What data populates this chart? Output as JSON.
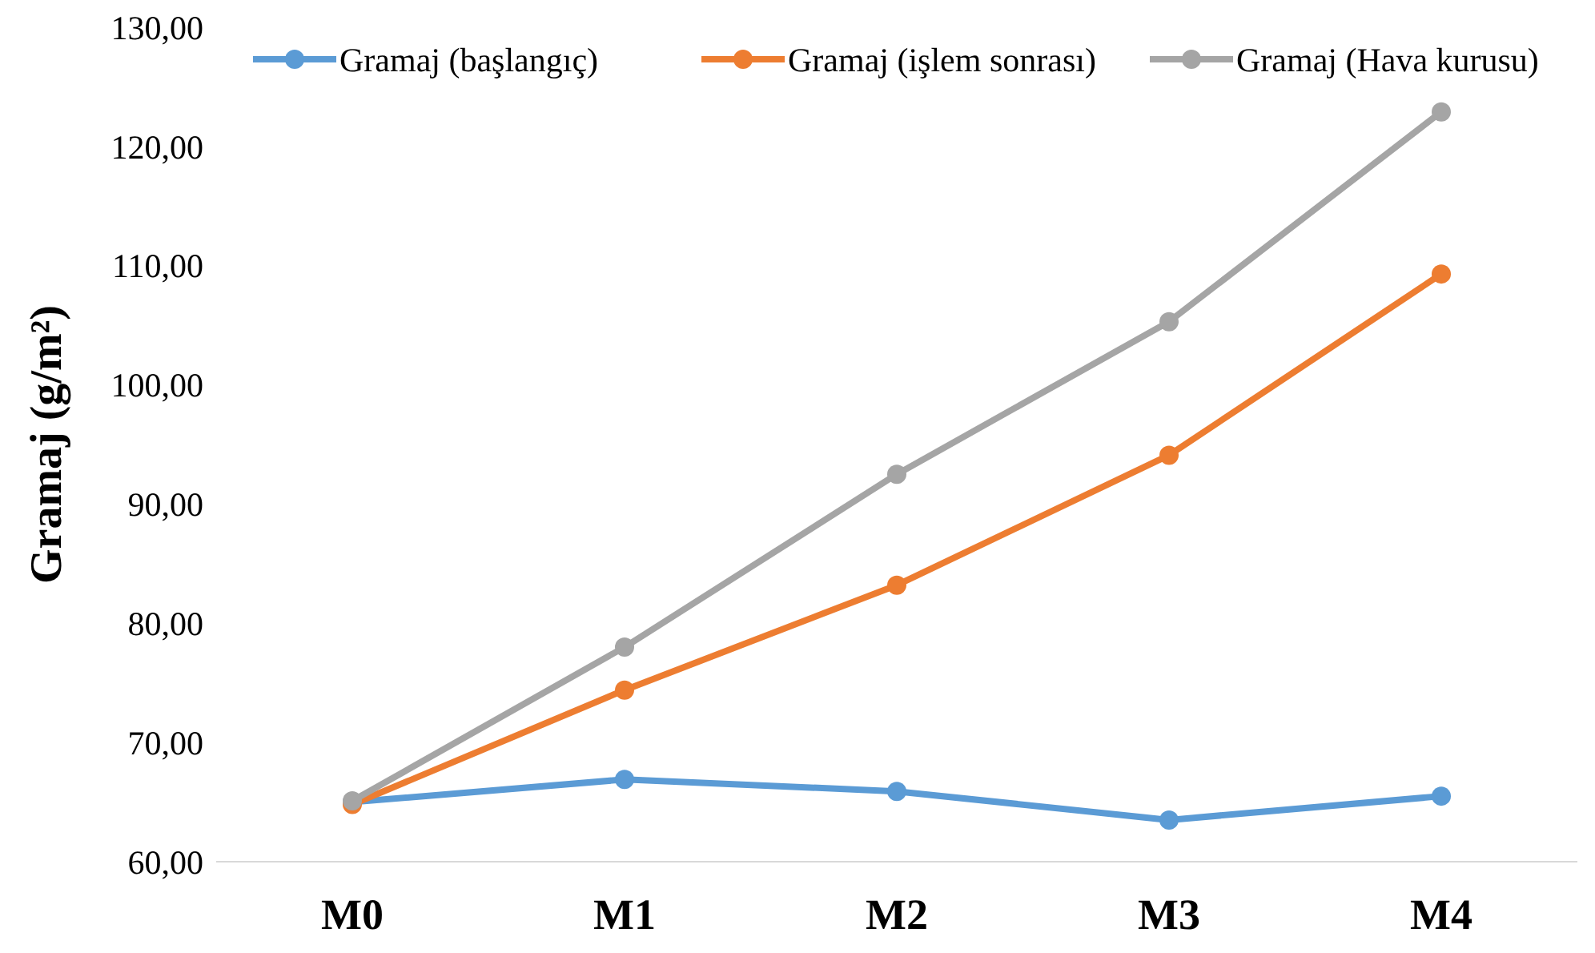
{
  "chart_data": {
    "type": "line",
    "ylabel": "Gramaj (g/m²)",
    "categories": [
      "M0",
      "M1",
      "M2",
      "M3",
      "M4"
    ],
    "series": [
      {
        "name": "Gramaj (başlangıç)",
        "color": "#5b9bd5",
        "values": [
          65.0,
          66.9,
          65.9,
          63.5,
          65.5
        ]
      },
      {
        "name": "Gramaj (işlem sonrası)",
        "color": "#ed7d31",
        "values": [
          64.8,
          74.4,
          83.2,
          94.1,
          109.3
        ]
      },
      {
        "name": "Gramaj (Hava kurusu)",
        "color": "#a5a5a5",
        "values": [
          65.1,
          78.0,
          92.5,
          105.3,
          122.9
        ]
      }
    ],
    "ylim": [
      60,
      130
    ],
    "yticks": [
      {
        "value": 60,
        "label": "60,00"
      },
      {
        "value": 70,
        "label": "70,00"
      },
      {
        "value": 80,
        "label": "80,00"
      },
      {
        "value": 90,
        "label": "90,00"
      },
      {
        "value": 100,
        "label": "100,00"
      },
      {
        "value": 110,
        "label": "110,00"
      },
      {
        "value": 120,
        "label": "120,00"
      },
      {
        "value": 130,
        "label": "130,00"
      }
    ],
    "grid": false,
    "legend": "top",
    "marker": "circle",
    "line_style": "solid"
  }
}
